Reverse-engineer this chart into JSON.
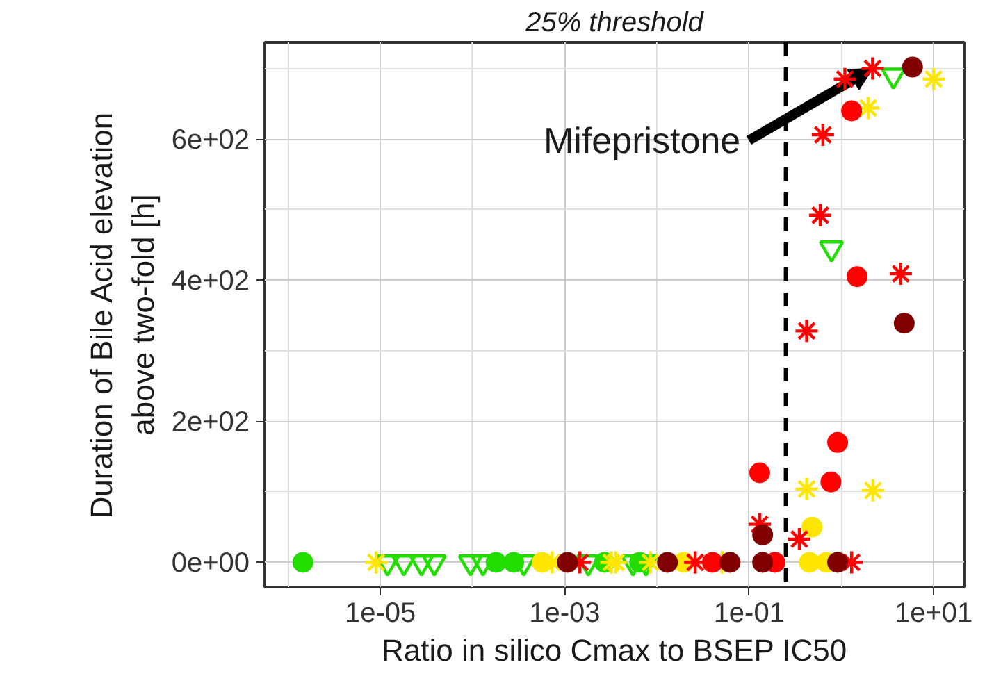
{
  "chart_data": {
    "type": "scatter",
    "xlabel": "Ratio in silico Cmax to BSEP IC50",
    "ylabel": "Duration of Bile Acid elevation\nabove two-fold [h]",
    "log": "x",
    "xlim": [
      5.6e-07,
      21.4
    ],
    "ylim": [
      -35,
      737
    ],
    "xticks": [
      {
        "value": 1e-05,
        "label": "1e-05"
      },
      {
        "value": 0.001,
        "label": "1e-03"
      },
      {
        "value": 0.1,
        "label": "1e-01"
      },
      {
        "value": 10,
        "label": "1e+01"
      }
    ],
    "yticks": [
      {
        "value": 0,
        "label": "0e+00"
      },
      {
        "value": 200,
        "label": "2e+02"
      },
      {
        "value": 400,
        "label": "4e+02"
      },
      {
        "value": 600,
        "label": "6e+02"
      }
    ],
    "grid": true,
    "ref_lines": [
      {
        "axis": "x",
        "value": 0.25,
        "label": "25% threshold",
        "color": "#000000",
        "line_style": "dashed"
      }
    ],
    "annotations": [
      {
        "text": "Mifepristone",
        "x": 2.18,
        "y": 700
      }
    ],
    "series": [
      {
        "color": "#22dd00",
        "marker": "triangle",
        "x": [
          1.2e-05,
          1.8e-05,
          2.8e-05,
          3.85e-05,
          9.5e-05,
          0.00013,
          0.00036,
          0.0018,
          0.0055,
          0.0076,
          0.78,
          3.66
        ],
        "values": [
          0,
          0,
          0,
          0,
          0,
          0,
          0,
          0,
          0,
          0,
          445,
          690
        ]
      },
      {
        "color": "#22dd00",
        "marker": "circle",
        "x": [
          1.45e-06,
          0.00018,
          0.00028,
          0.0027,
          0.0065
        ],
        "values": [
          0,
          0,
          0,
          0,
          0
        ]
      },
      {
        "color": "#ffe600",
        "marker": "cross",
        "x": [
          9e-06,
          0.00073,
          0.0032,
          0.0036,
          0.0085,
          0.051,
          0.42,
          2.2,
          1.95,
          10
        ],
        "values": [
          0,
          0,
          0,
          0,
          0,
          0,
          104,
          102,
          644,
          685
        ]
      },
      {
        "color": "#ffe600",
        "marker": "circle",
        "x": [
          0.00057,
          0.0195,
          0.45,
          0.69,
          0.48
        ],
        "values": [
          0,
          0,
          0,
          0,
          50
        ]
      },
      {
        "color": "#ff0000",
        "marker": "cross",
        "x": [
          0.00146,
          0.026,
          0.13,
          0.35,
          1.29,
          0.42,
          0.59,
          0.63,
          1.09,
          2.18,
          4.4
        ],
        "values": [
          0,
          0,
          54,
          33,
          0,
          328,
          492,
          606,
          685,
          700,
          409
        ]
      },
      {
        "color": "#ff0000",
        "marker": "circle",
        "x": [
          0.04,
          0.19,
          0.13,
          0.77,
          0.91,
          1.48,
          1.29
        ],
        "values": [
          0,
          0,
          127,
          114,
          170,
          405,
          640
        ]
      },
      {
        "color": "#800000",
        "marker": "circle",
        "x": [
          0.00107,
          0.013,
          0.062,
          0.14,
          0.91,
          0.14,
          4.8,
          5.9
        ],
        "values": [
          0,
          0,
          0,
          0,
          0,
          39,
          339,
          702
        ]
      }
    ]
  }
}
